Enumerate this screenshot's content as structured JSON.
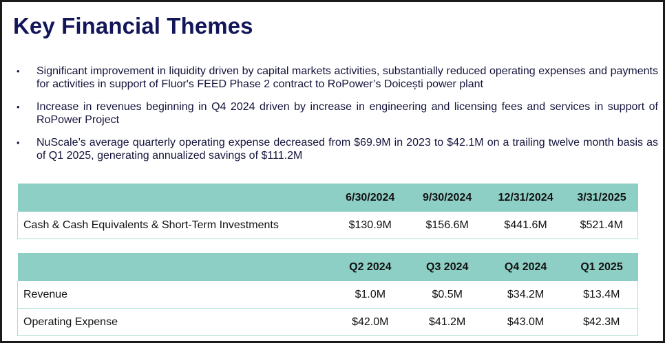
{
  "title": "Key Financial Themes",
  "bullets": [
    "Significant improvement in liquidity driven by capital markets activities, substantially reduced operating expenses and payments for activities in support of Fluor's FEED Phase 2 contract to RoPower’s Doicești power plant",
    "Increase in revenues beginning in Q4 2024 driven by increase in engineering and licensing fees and services in support of RoPower Project",
    "NuScale’s average quarterly operating expense decreased from $69.9M in 2023 to $42.1M on a trailing twelve month basis as of Q1 2025, generating annualized savings of $111.2M"
  ],
  "bullet_marker": "•",
  "cash_table": {
    "header_label": "",
    "columns": [
      "6/30/2024",
      "9/30/2024",
      "12/31/2024",
      "3/31/2025"
    ],
    "rows": [
      {
        "label": "Cash & Cash Equivalents & Short-Term Investments",
        "values": [
          "$130.9M",
          "$156.6M",
          "$441.6M",
          "$521.4M"
        ]
      }
    ]
  },
  "quarter_table": {
    "header_label": "",
    "columns": [
      "Q2 2024",
      "Q3 2024",
      "Q4 2024",
      "Q1 2025"
    ],
    "rows": [
      {
        "label": "Revenue",
        "values": [
          "$1.0M",
          "$0.5M",
          "$34.2M",
          "$13.4M"
        ]
      },
      {
        "label": "Operating Expense",
        "values": [
          "$42.0M",
          "$41.2M",
          "$43.0M",
          "$42.3M"
        ]
      }
    ]
  },
  "colors": {
    "title": "#13175a",
    "header_fill": "#8ecfc5",
    "row_border": "#a9ddd6",
    "frame": "#1a1a1a"
  }
}
